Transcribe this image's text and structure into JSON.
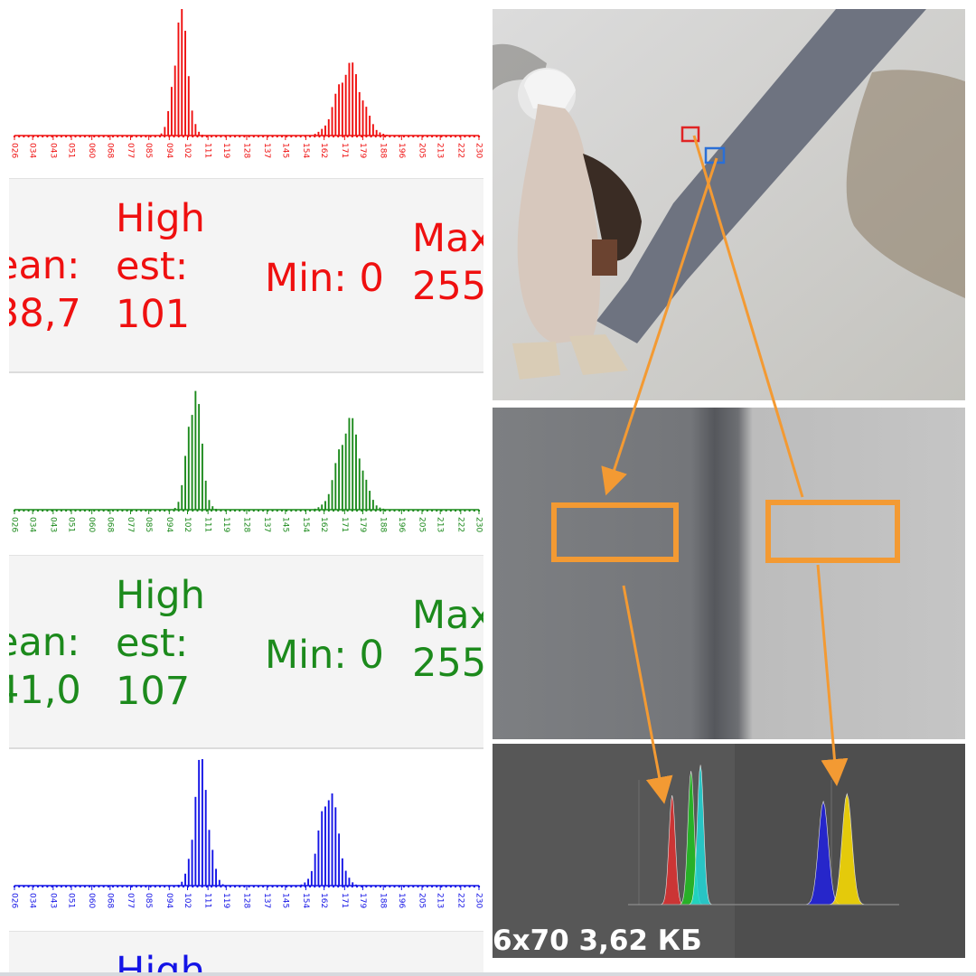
{
  "colors": {
    "red": "#ef1010",
    "green": "#1c8a1c",
    "blue": "#1414e6",
    "orange": "#f39a33",
    "roi_red": "#e02424",
    "roi_blue": "#2a6fd6",
    "card_bg": "#f4f4f4"
  },
  "histograms": [
    {
      "channel": "red",
      "stats": {
        "mean_label": "ean:",
        "mean_value": "38,7",
        "high_line1": "High",
        "high_line2": "est:",
        "high_value": "101",
        "min_label": "Min: 0",
        "max_label": "Max",
        "max_value": "255"
      }
    },
    {
      "channel": "green",
      "stats": {
        "mean_label": "ean:",
        "mean_value": "41,0",
        "high_line1": "High",
        "high_line2": "est:",
        "high_value": "107",
        "min_label": "Min: 0",
        "max_label": "Max",
        "max_value": "255"
      }
    },
    {
      "channel": "blue",
      "stats": {
        "high_line1": "High"
      }
    }
  ],
  "chart_data": [
    {
      "type": "area",
      "channel": "red",
      "xlim": [
        26,
        230
      ],
      "x_tick_labels": [
        "026",
        "034",
        "043",
        "051",
        "060",
        "068",
        "077",
        "085",
        "094",
        "102",
        "111",
        "119",
        "128",
        "137",
        "145",
        "154",
        "162",
        "171",
        "179",
        "188",
        "196",
        "205",
        "213",
        "222",
        "230"
      ],
      "peaks": [
        {
          "center": 99,
          "width": 3.0,
          "height": 1.0
        },
        {
          "center": 173,
          "width": 5.5,
          "height": 0.57
        }
      ]
    },
    {
      "type": "area",
      "channel": "green",
      "xlim": [
        26,
        230
      ],
      "x_tick_labels": [
        "026",
        "034",
        "043",
        "051",
        "060",
        "068",
        "077",
        "085",
        "094",
        "102",
        "111",
        "119",
        "128",
        "137",
        "145",
        "154",
        "162",
        "171",
        "179",
        "188",
        "196",
        "205",
        "213",
        "222",
        "230"
      ],
      "peaks": [
        {
          "center": 105,
          "width": 3.0,
          "height": 1.0
        },
        {
          "center": 173,
          "width": 5.0,
          "height": 0.72
        }
      ]
    },
    {
      "type": "area",
      "channel": "blue",
      "xlim": [
        26,
        230
      ],
      "x_tick_labels": [
        "026",
        "034",
        "043",
        "051",
        "060",
        "068",
        "077",
        "085",
        "094",
        "102",
        "111",
        "119",
        "128",
        "137",
        "145",
        "154",
        "162",
        "171",
        "179",
        "188",
        "196",
        "205",
        "213",
        "222",
        "230"
      ],
      "peaks": [
        {
          "center": 108,
          "width": 3.2,
          "height": 1.0
        },
        {
          "center": 164,
          "width": 4.0,
          "height": 0.78
        }
      ]
    }
  ],
  "zoom_histogram": {
    "left_cluster": [
      {
        "color": "#e03030",
        "center": 0.38,
        "height": 0.72
      },
      {
        "color": "#20c020",
        "center": 0.42,
        "height": 0.88
      },
      {
        "color": "#20d8d8",
        "center": 0.44,
        "height": 0.92
      }
    ],
    "right_cluster": [
      {
        "color": "#2020e0",
        "center": 0.7,
        "height": 0.68
      },
      {
        "color": "#ffe000",
        "center": 0.75,
        "height": 0.73
      }
    ]
  },
  "footer": {
    "text": "6x70 3,62 КБ"
  }
}
